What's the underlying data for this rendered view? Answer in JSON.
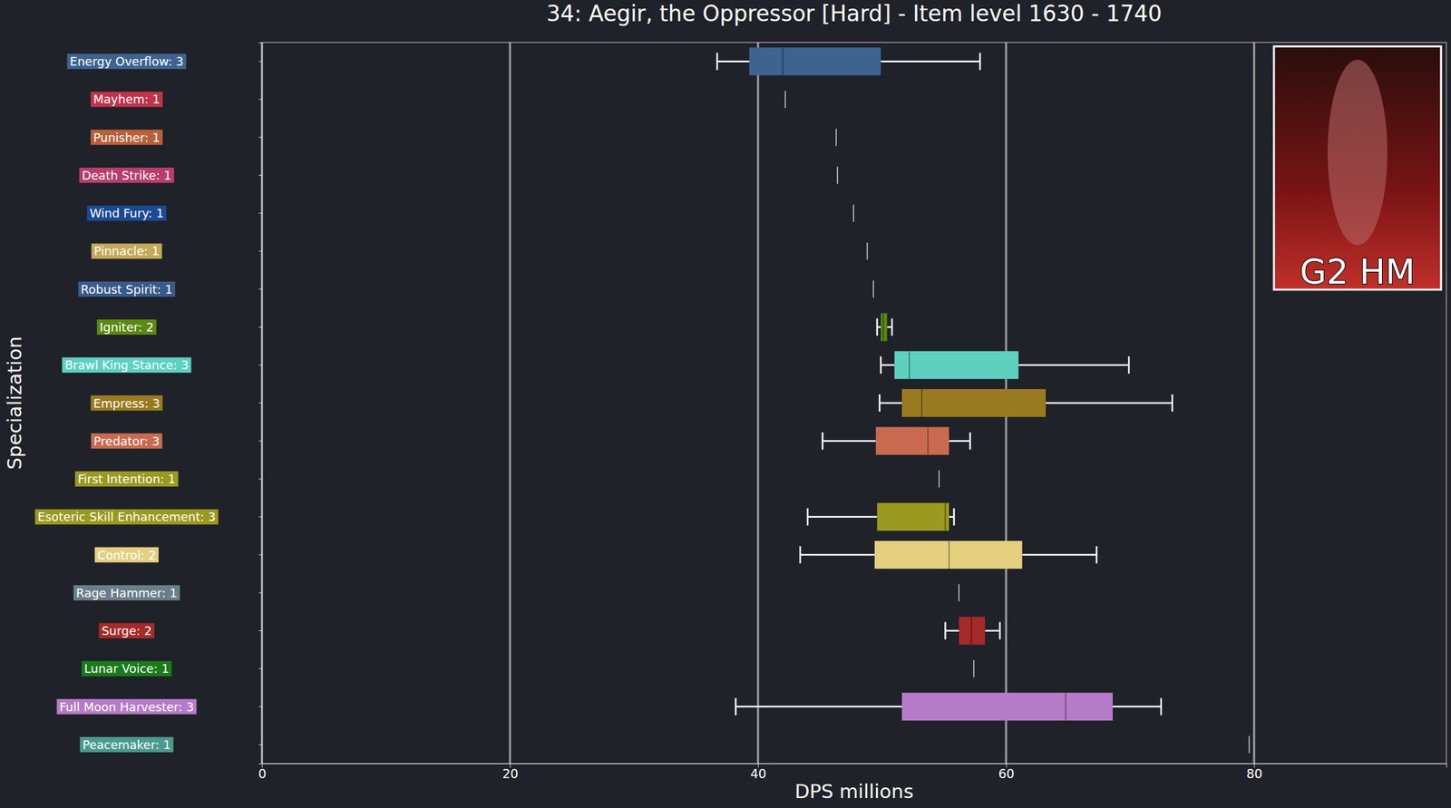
{
  "chart_data": {
    "type": "box",
    "orientation": "horizontal",
    "title": "34: Aegir, the Oppressor [Hard] - Item level 1630 - 1740",
    "x_label": "DPS millions",
    "y_label": "Specialization",
    "annotations": [
      "G2 HM"
    ],
    "xlim": [
      0,
      95.5
    ],
    "xticks": [
      0,
      20,
      40,
      60,
      80
    ],
    "grid": true,
    "categories": [
      "Energy Overflow: 3",
      "Mayhem: 1",
      "Punisher: 1",
      "Death Strike: 1",
      "Wind Fury: 1",
      "Pinnacle: 1",
      "Robust Spirit: 1",
      "Igniter: 2",
      "Brawl King Stance: 3",
      "Empress: 3",
      "Predator: 3",
      "First Intention: 1",
      "Esoteric Skill Enhancement: 3",
      "Control: 2",
      "Rage Hammer: 1",
      "Surge: 2",
      "Lunar Voice: 1",
      "Full Moon Harvester: 3",
      "Peacemaker: 1"
    ],
    "colors": [
      "#3d6491",
      "#c0334a",
      "#b9603a",
      "#b83d6a",
      "#1a4a93",
      "#c5a95a",
      "#3a5a8a",
      "#5a8a10",
      "#5ed0c0",
      "#9a7a20",
      "#c96a50",
      "#9a9a20",
      "#9a9a20",
      "#e5d080",
      "#6a7f8a",
      "#a52a2a",
      "#1a7a1a",
      "#b67bc8",
      "#4a9a90"
    ],
    "boxes": [
      {
        "whislo": 36.7,
        "q1": 39.3,
        "median": 42.0,
        "q3": 49.9,
        "whishi": 57.9
      },
      {
        "value": 42.2
      },
      {
        "value": 46.3
      },
      {
        "value": 46.4
      },
      {
        "value": 47.7
      },
      {
        "value": 48.8
      },
      {
        "value": 49.3
      },
      {
        "whislo": 49.6,
        "q1": 49.9,
        "median": 50.1,
        "q3": 50.4,
        "whishi": 50.8
      },
      {
        "whislo": 49.9,
        "q1": 51.0,
        "median": 52.2,
        "q3": 61.0,
        "whishi": 69.9
      },
      {
        "whislo": 49.8,
        "q1": 51.6,
        "median": 53.2,
        "q3": 63.2,
        "whishi": 73.4
      },
      {
        "whislo": 45.2,
        "q1": 49.5,
        "median": 53.7,
        "q3": 55.4,
        "whishi": 57.1
      },
      {
        "value": 54.6
      },
      {
        "whislo": 44.0,
        "q1": 49.6,
        "median": 55.1,
        "q3": 55.4,
        "whishi": 55.8
      },
      {
        "whislo": 43.4,
        "q1": 49.4,
        "median": 55.4,
        "q3": 61.3,
        "whishi": 67.3
      },
      {
        "value": 56.2
      },
      {
        "whislo": 55.1,
        "q1": 56.2,
        "median": 57.2,
        "q3": 58.3,
        "whishi": 59.5
      },
      {
        "value": 57.4
      },
      {
        "whislo": 38.2,
        "q1": 51.6,
        "median": 64.8,
        "q3": 68.6,
        "whishi": 72.5
      },
      {
        "value": 79.6
      }
    ]
  }
}
